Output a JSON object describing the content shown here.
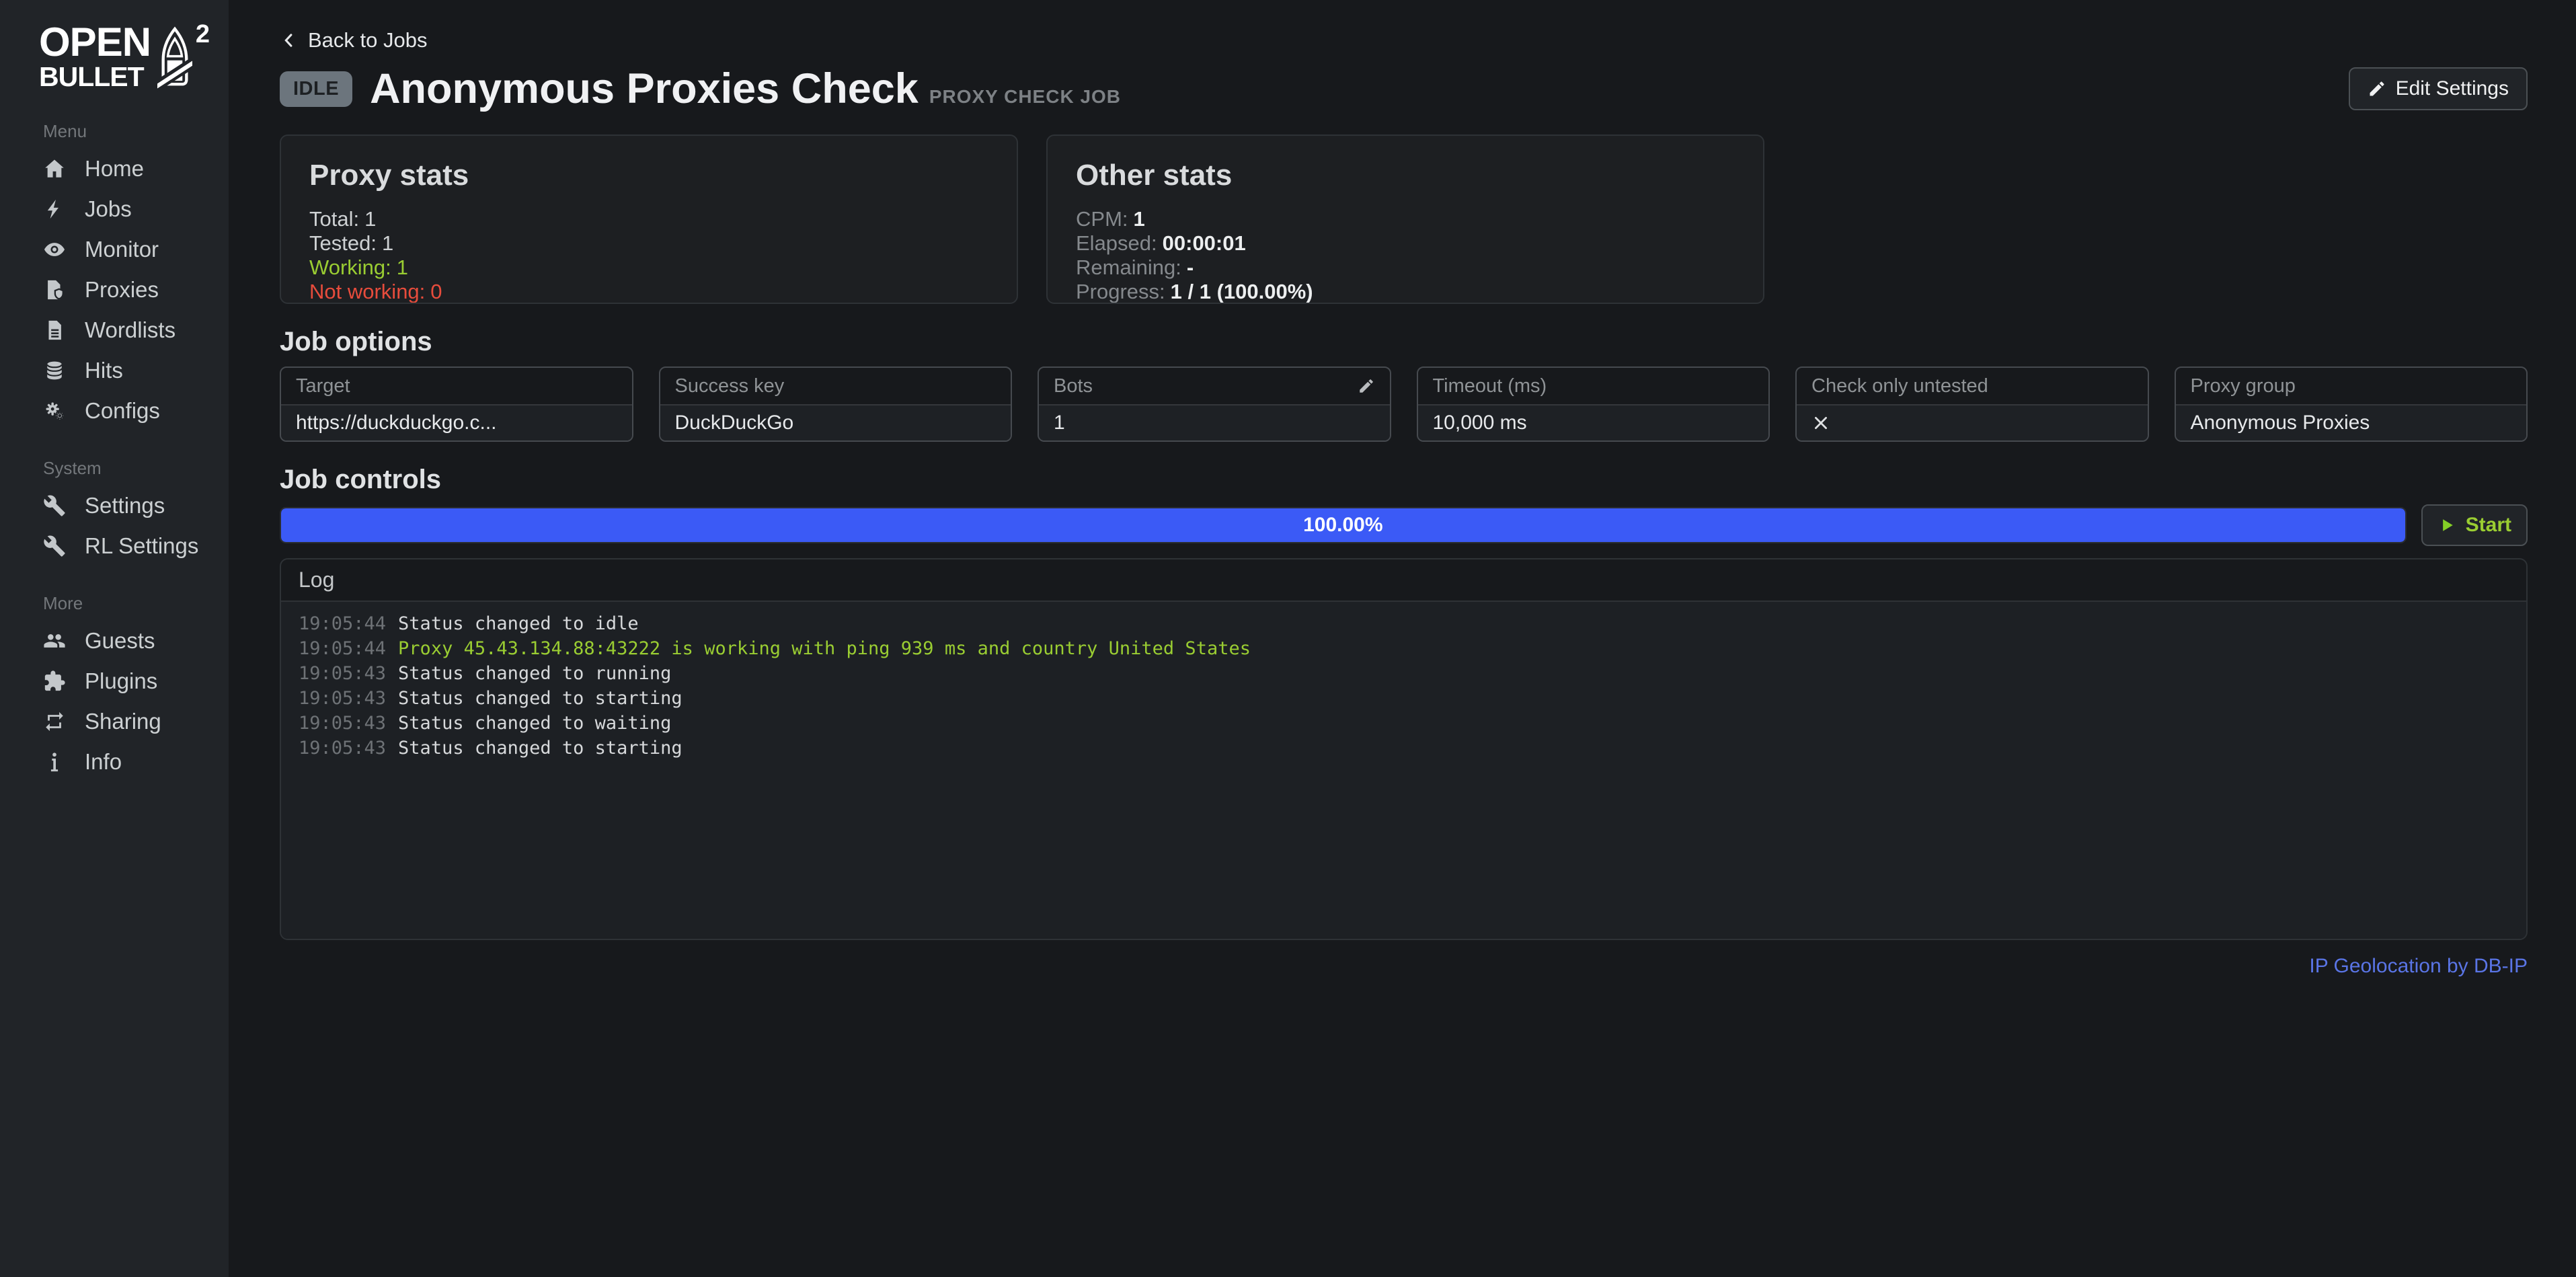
{
  "logo": {
    "line1": "OPEN",
    "line2": "BULLET",
    "sup": "2"
  },
  "sidebar": {
    "sections": [
      {
        "label": "Menu",
        "items": [
          {
            "icon": "home-icon",
            "label": "Home"
          },
          {
            "icon": "lightning-icon",
            "label": "Jobs"
          },
          {
            "icon": "eye-icon",
            "label": "Monitor"
          },
          {
            "icon": "file-shield-icon",
            "label": "Proxies"
          },
          {
            "icon": "file-lines-icon",
            "label": "Wordlists"
          },
          {
            "icon": "database-icon",
            "label": "Hits"
          },
          {
            "icon": "gears-icon",
            "label": "Configs"
          }
        ]
      },
      {
        "label": "System",
        "items": [
          {
            "icon": "wrench-icon",
            "label": "Settings"
          },
          {
            "icon": "wrench-icon",
            "label": "RL Settings"
          }
        ]
      },
      {
        "label": "More",
        "items": [
          {
            "icon": "users-icon",
            "label": "Guests"
          },
          {
            "icon": "puzzle-icon",
            "label": "Plugins"
          },
          {
            "icon": "repeat-icon",
            "label": "Sharing"
          },
          {
            "icon": "info-icon",
            "label": "Info"
          }
        ]
      }
    ]
  },
  "header": {
    "back_label": "Back to Jobs",
    "status_badge": "IDLE",
    "title": "Anonymous Proxies Check",
    "subtitle": "PROXY CHECK JOB",
    "edit_settings_label": "Edit Settings"
  },
  "proxy_stats": {
    "title": "Proxy stats",
    "rows": [
      {
        "label": "Total:",
        "value": "1",
        "type": "normal"
      },
      {
        "label": "Tested:",
        "value": "1",
        "type": "normal"
      },
      {
        "label": "Working:",
        "value": "1",
        "type": "good"
      },
      {
        "label": "Not working:",
        "value": "0",
        "type": "bad"
      }
    ]
  },
  "other_stats": {
    "title": "Other stats",
    "rows": [
      {
        "label": "CPM:",
        "value": "1"
      },
      {
        "label": "Elapsed:",
        "value": "00:00:01"
      },
      {
        "label": "Remaining:",
        "value": "-"
      },
      {
        "label": "Progress:",
        "value": "1 / 1 (100.00%)"
      }
    ]
  },
  "job_options": {
    "title": "Job options",
    "fields": [
      {
        "label": "Target",
        "value": "https://duckduckgo.c..."
      },
      {
        "label": "Success key",
        "value": "DuckDuckGo"
      },
      {
        "label": "Bots",
        "value": "1",
        "editable": true
      },
      {
        "label": "Timeout (ms)",
        "value": "10,000 ms"
      },
      {
        "label": "Check only untested",
        "value": "✕"
      },
      {
        "label": "Proxy group",
        "value": "Anonymous Proxies"
      }
    ]
  },
  "job_controls": {
    "title": "Job controls",
    "progress_label": "100.00%",
    "progress_percent": 100,
    "start_label": "Start"
  },
  "log": {
    "title": "Log",
    "entries": [
      {
        "time": "19:05:44",
        "message": "Status changed to idle",
        "type": "normal"
      },
      {
        "time": "19:05:44",
        "message": "Proxy 45.43.134.88:43222 is working with ping 939 ms and country United States",
        "type": "success"
      },
      {
        "time": "19:05:43",
        "message": "Status changed to running",
        "type": "normal"
      },
      {
        "time": "19:05:43",
        "message": "Status changed to starting",
        "type": "normal"
      },
      {
        "time": "19:05:43",
        "message": "Status changed to waiting",
        "type": "normal"
      },
      {
        "time": "19:05:43",
        "message": "Status changed to starting",
        "type": "normal"
      }
    ]
  },
  "footer": {
    "geolocation_link": "IP Geolocation by DB-IP"
  },
  "colors": {
    "accent_blue": "#3b5af6",
    "success_green": "#9acd32",
    "danger_red": "#e74c3c",
    "link_blue": "#5a75e6",
    "badge_gray": "#6c757d",
    "sidebar_bg": "#212428",
    "page_bg": "#17191c"
  }
}
